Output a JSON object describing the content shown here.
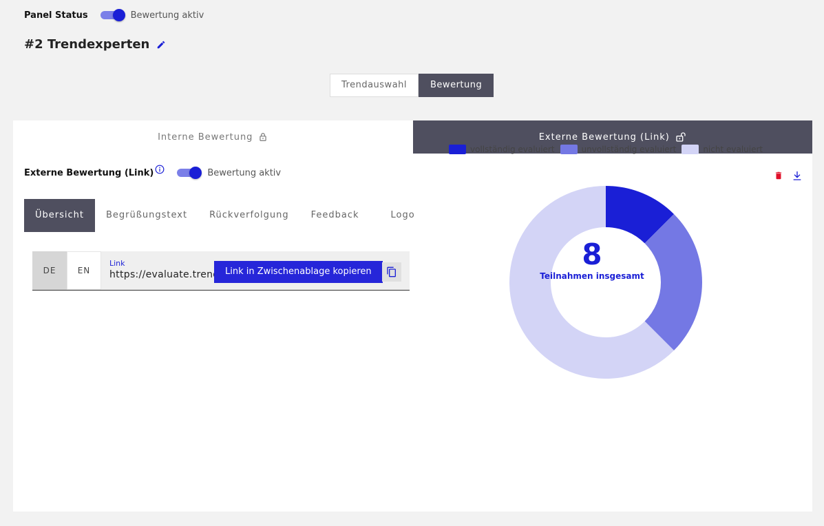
{
  "panel": {
    "label": "Panel Status",
    "toggle_label": "Bewertung aktiv",
    "toggle_on": true
  },
  "title": "#2 Trendexperten",
  "segments": [
    {
      "label": "Trendauswahl",
      "active": false
    },
    {
      "label": "Bewertung",
      "active": true
    }
  ],
  "top_tabs": [
    {
      "label": "Interne Bewertung",
      "active": false
    },
    {
      "label": "Externe Bewertung (Link)",
      "active": true
    }
  ],
  "external": {
    "title": "Externe Bewertung (Link)",
    "toggle_label": "Bewertung aktiv",
    "toggle_on": true
  },
  "sub_tabs": [
    "Übersicht",
    "Begrüßungstext",
    "Rückverfolgung",
    "Feedback",
    "Logo"
  ],
  "link": {
    "languages": [
      "DE",
      "EN"
    ],
    "selected_language": "DE",
    "label": "Link",
    "url": "https://evaluate.trendonlinge.com/trendexperten-sa-",
    "tooltip": "Link in Zwischenablage kopieren"
  },
  "colors": {
    "accent": "#1a1fd6",
    "complete": "#1a1fd6",
    "incomplete": "#7478e4",
    "none": "#d3d4f6",
    "dark": "#4f4f5f",
    "delete": "#e0102a"
  },
  "icons": {
    "edit": "pencil-icon",
    "info": "info-icon",
    "delete": "trash-icon",
    "download": "download-icon",
    "copy": "copy-icon",
    "lock": "lock-icon",
    "unlock": "unlock-icon"
  },
  "chart_data": {
    "type": "pie",
    "legend_position": "top",
    "categories": [
      "vollständig evaluiert",
      "unvollständig evaluiert",
      "nicht evaluiert"
    ],
    "values": [
      1,
      2,
      5
    ],
    "total": "8",
    "total_label": "Teilnahmen insgesamt"
  }
}
